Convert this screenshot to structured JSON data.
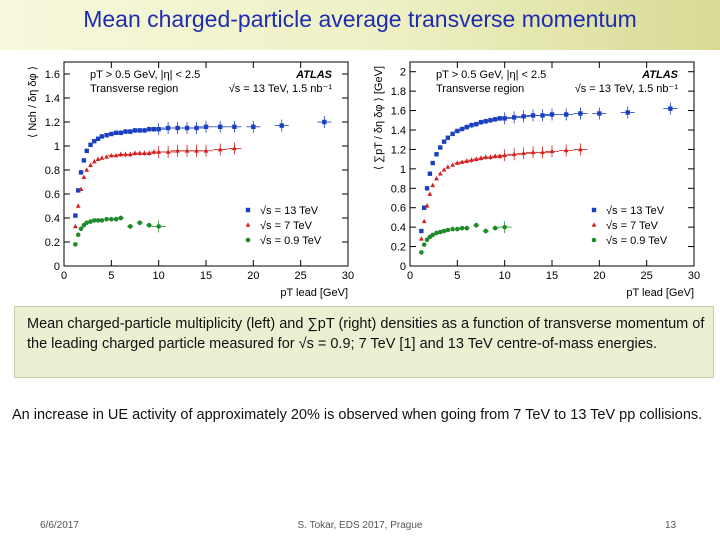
{
  "slide": {
    "title": "Mean charged-particle average transverse momentum",
    "caption": "Mean charged-particle multiplicity (left) and ∑pT (right) densities as a function of transverse momentum of the leading charged particle measured for √s = 0.9; 7 TeV [1] and 13 TeV centre-of-mass energies.",
    "note": "An increase in UE activity of approximately 20% is observed when going from 7 TeV to 13 TeV pp collisions.",
    "footer_date": "6/6/2017",
    "footer_center": "S. Tokar, EDS 2017, Prague",
    "footer_page": "13"
  },
  "chart_data": [
    {
      "type": "scatter",
      "title": "ATLAS",
      "annotations": [
        "pT > 0.5 GeV, |η| < 2.5",
        "Transverse region",
        "√s = 13 TeV, 1.5 nb⁻¹"
      ],
      "xlabel": "pT lead [GeV]",
      "ylabel": "⟨ Nch / δη δφ ⟩",
      "xlim": [
        0,
        30
      ],
      "ylim": [
        0,
        1.7
      ],
      "xticks": [
        0,
        5,
        10,
        15,
        20,
        25,
        30
      ],
      "yticks": [
        0,
        0.2,
        0.4,
        0.6,
        0.8,
        1,
        1.2,
        1.4,
        1.6
      ],
      "legend_position": "bottom-right",
      "series": [
        {
          "name": "√s = 13 TeV",
          "color": "#1a3fbf",
          "marker": "square",
          "x": [
            1.2,
            1.5,
            1.8,
            2.1,
            2.4,
            2.8,
            3.2,
            3.6,
            4.0,
            4.5,
            5.0,
            5.5,
            6.0,
            6.5,
            7.0,
            7.5,
            8.0,
            8.5,
            9.0,
            9.5,
            10.0,
            11.0,
            12.0,
            13.0,
            14.0,
            15.0,
            16.5,
            18.0,
            20.0,
            23.0,
            27.5
          ],
          "y": [
            0.42,
            0.63,
            0.78,
            0.88,
            0.96,
            1.01,
            1.04,
            1.06,
            1.08,
            1.09,
            1.1,
            1.11,
            1.11,
            1.12,
            1.12,
            1.13,
            1.13,
            1.13,
            1.14,
            1.14,
            1.14,
            1.15,
            1.15,
            1.15,
            1.15,
            1.16,
            1.16,
            1.16,
            1.16,
            1.17,
            1.2
          ]
        },
        {
          "name": "√s = 7 TeV",
          "color": "#d42020",
          "marker": "triangle",
          "x": [
            1.2,
            1.5,
            1.8,
            2.1,
            2.4,
            2.8,
            3.2,
            3.6,
            4.0,
            4.5,
            5.0,
            5.5,
            6.0,
            6.5,
            7.0,
            7.5,
            8.0,
            8.5,
            9.0,
            9.5,
            10.0,
            11.0,
            12.0,
            13.0,
            14.0,
            15.0,
            16.5,
            18.0
          ],
          "y": [
            0.33,
            0.5,
            0.64,
            0.74,
            0.8,
            0.84,
            0.87,
            0.89,
            0.9,
            0.91,
            0.92,
            0.92,
            0.93,
            0.93,
            0.93,
            0.94,
            0.94,
            0.94,
            0.94,
            0.95,
            0.95,
            0.95,
            0.96,
            0.96,
            0.96,
            0.96,
            0.97,
            0.98
          ]
        },
        {
          "name": "√s = 0.9 TeV",
          "color": "#1f8a2a",
          "marker": "circle",
          "x": [
            1.2,
            1.5,
            1.8,
            2.1,
            2.4,
            2.8,
            3.2,
            3.6,
            4.0,
            4.5,
            5.0,
            5.5,
            6.0,
            7.0,
            8.0,
            9.0,
            10.0
          ],
          "y": [
            0.18,
            0.26,
            0.31,
            0.34,
            0.36,
            0.37,
            0.38,
            0.38,
            0.38,
            0.39,
            0.39,
            0.39,
            0.4,
            0.33,
            0.36,
            0.34,
            0.33
          ]
        }
      ]
    },
    {
      "type": "scatter",
      "title": "ATLAS",
      "annotations": [
        "pT > 0.5 GeV, |η| < 2.5",
        "Transverse region",
        "√s = 13 TeV, 1.5 nb⁻¹"
      ],
      "xlabel": "pT lead [GeV]",
      "ylabel": "⟨ ∑pT / δη δφ ⟩ [GeV]",
      "xlim": [
        0,
        30
      ],
      "ylim": [
        0,
        2.1
      ],
      "xticks": [
        0,
        5,
        10,
        15,
        20,
        25,
        30
      ],
      "yticks": [
        0,
        0.2,
        0.4,
        0.6,
        0.8,
        1,
        1.2,
        1.4,
        1.6,
        1.8,
        2
      ],
      "legend_position": "bottom-right",
      "series": [
        {
          "name": "√s = 13 TeV",
          "color": "#1a3fbf",
          "marker": "square",
          "x": [
            1.2,
            1.5,
            1.8,
            2.1,
            2.4,
            2.8,
            3.2,
            3.6,
            4.0,
            4.5,
            5.0,
            5.5,
            6.0,
            6.5,
            7.0,
            7.5,
            8.0,
            8.5,
            9.0,
            9.5,
            10.0,
            11.0,
            12.0,
            13.0,
            14.0,
            15.0,
            16.5,
            18.0,
            20.0,
            23.0,
            27.5
          ],
          "y": [
            0.36,
            0.6,
            0.8,
            0.95,
            1.06,
            1.15,
            1.22,
            1.28,
            1.32,
            1.36,
            1.39,
            1.41,
            1.43,
            1.45,
            1.46,
            1.48,
            1.49,
            1.5,
            1.51,
            1.52,
            1.52,
            1.53,
            1.54,
            1.55,
            1.55,
            1.56,
            1.56,
            1.57,
            1.57,
            1.58,
            1.62
          ]
        },
        {
          "name": "√s = 7 TeV",
          "color": "#d42020",
          "marker": "triangle",
          "x": [
            1.2,
            1.5,
            1.8,
            2.1,
            2.4,
            2.8,
            3.2,
            3.6,
            4.0,
            4.5,
            5.0,
            5.5,
            6.0,
            6.5,
            7.0,
            7.5,
            8.0,
            8.5,
            9.0,
            9.5,
            10.0,
            11.0,
            12.0,
            13.0,
            14.0,
            15.0,
            16.5,
            18.0
          ],
          "y": [
            0.28,
            0.46,
            0.62,
            0.74,
            0.83,
            0.9,
            0.95,
            0.99,
            1.02,
            1.04,
            1.06,
            1.07,
            1.08,
            1.09,
            1.1,
            1.11,
            1.12,
            1.12,
            1.13,
            1.13,
            1.14,
            1.15,
            1.16,
            1.17,
            1.17,
            1.18,
            1.19,
            1.2
          ]
        },
        {
          "name": "√s = 0.9 TeV",
          "color": "#1f8a2a",
          "marker": "circle",
          "x": [
            1.2,
            1.5,
            1.8,
            2.1,
            2.4,
            2.8,
            3.2,
            3.6,
            4.0,
            4.5,
            5.0,
            5.5,
            6.0,
            7.0,
            8.0,
            9.0,
            10.0
          ],
          "y": [
            0.14,
            0.22,
            0.27,
            0.3,
            0.32,
            0.34,
            0.35,
            0.36,
            0.37,
            0.38,
            0.38,
            0.39,
            0.39,
            0.42,
            0.36,
            0.39,
            0.4
          ]
        }
      ]
    }
  ]
}
